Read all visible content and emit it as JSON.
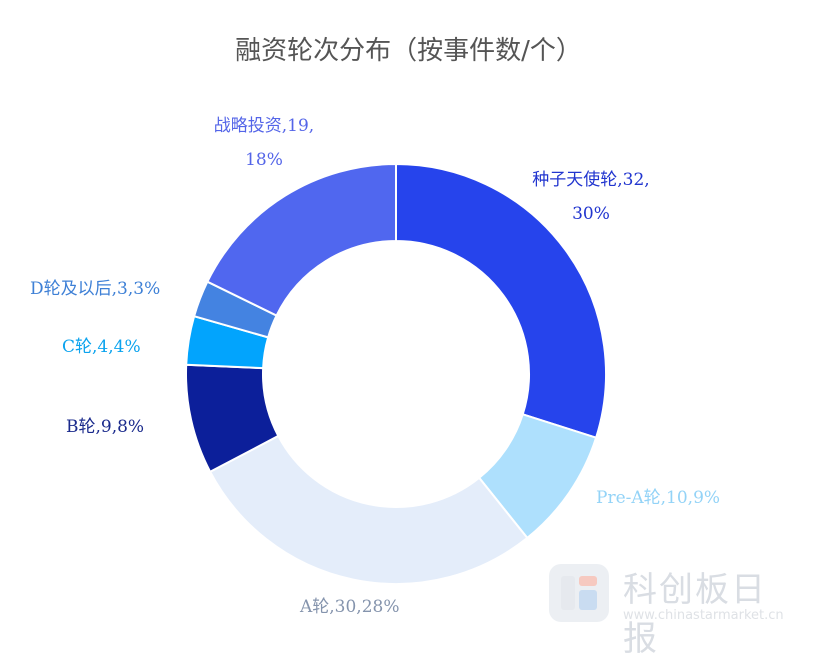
{
  "title": "融资轮次分布（按事件数/个）",
  "chart_data": {
    "type": "pie",
    "donut": true,
    "title": "融资轮次分布（按事件数/个）",
    "slices": [
      {
        "name": "种子天使轮",
        "value": 32,
        "percent": "30%",
        "color": "#2644ec",
        "label_line1": "种子天使轮,32,",
        "label_line2": "30%"
      },
      {
        "name": "Pre-A轮",
        "value": 10,
        "percent": "9%",
        "color": "#aee0fd",
        "label_line1": "Pre-A轮,10,9%",
        "label_line2": ""
      },
      {
        "name": "A轮",
        "value": 30,
        "percent": "28%",
        "color": "#e4edfa",
        "label_line1": "A轮,30,28%",
        "label_line2": ""
      },
      {
        "name": "B轮",
        "value": 9,
        "percent": "8%",
        "color": "#0c1f9a",
        "label_line1": "B轮,9,8%",
        "label_line2": ""
      },
      {
        "name": "C轮",
        "value": 4,
        "percent": "4%",
        "color": "#02a4fd",
        "label_line1": "C轮,4,4%",
        "label_line2": ""
      },
      {
        "name": "D轮及以后",
        "value": 3,
        "percent": "3%",
        "color": "#4483e1",
        "label_line1": "D轮及以后,3,3%",
        "label_line2": ""
      },
      {
        "name": "战略投资",
        "value": 19,
        "percent": "18%",
        "color": "#5067ef",
        "label_line1": "战略投资,19,",
        "label_line2": "18%"
      }
    ],
    "label_colors": [
      "#2135cf",
      "#93d3f7",
      "#8594ad",
      "#1a2a8c",
      "#0ba3ee",
      "#3e80d6",
      "#5465e8"
    ]
  },
  "watermark": {
    "name": "科创板日报",
    "url": "www.chinastarmarket.cn",
    "logo_colors": [
      "#e6e9ee",
      "#f6c9c0",
      "#c9dcf1"
    ]
  }
}
